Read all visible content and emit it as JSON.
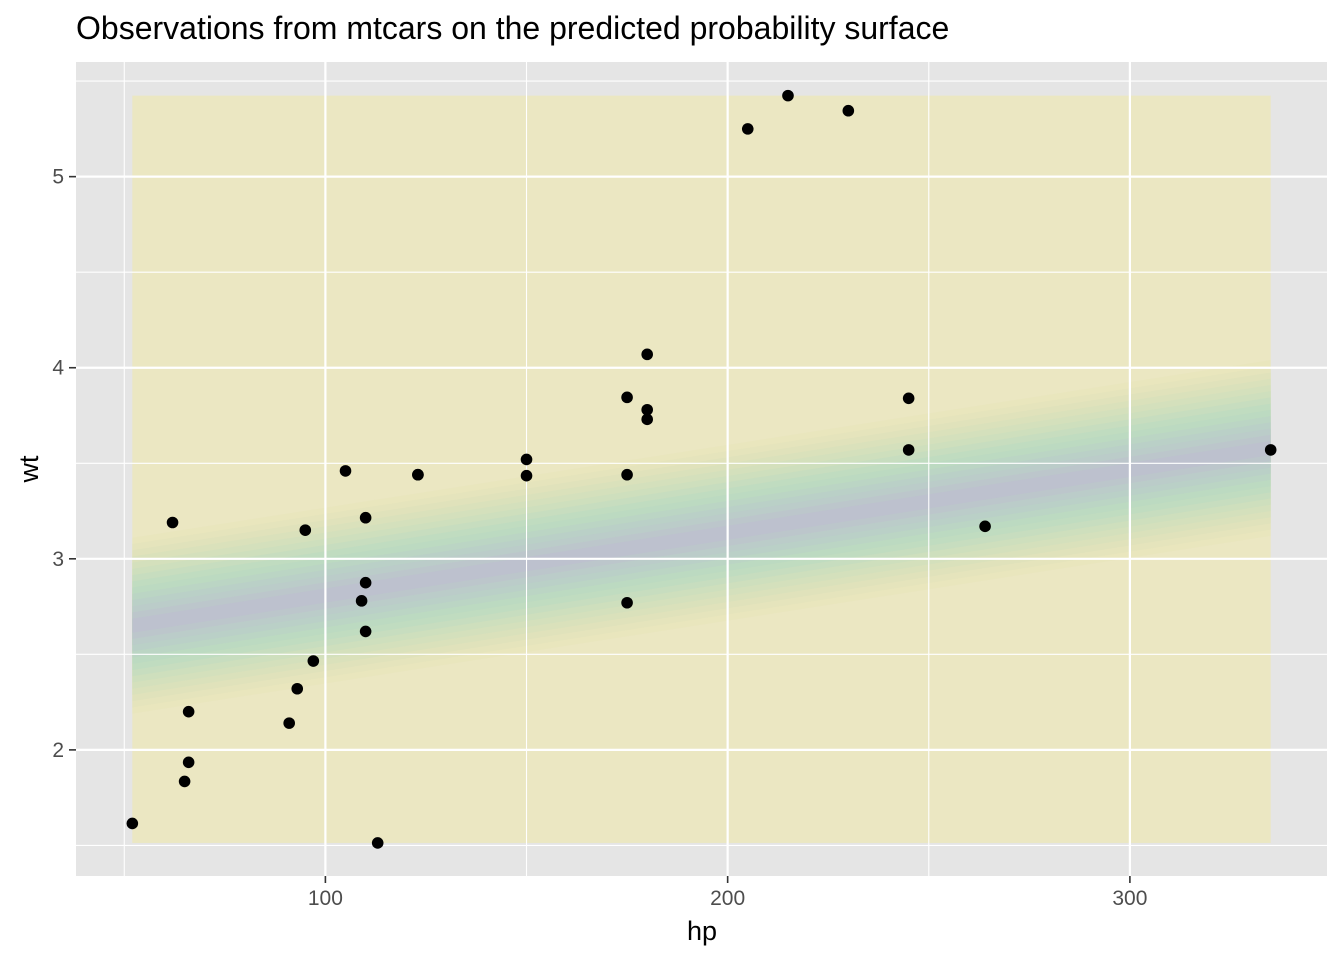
{
  "chart_data": {
    "type": "scatter",
    "title": "Observations from mtcars on the predicted probability surface",
    "xlabel": "hp",
    "ylabel": "wt",
    "xlim": [
      38,
      349
    ],
    "ylim": [
      1.34,
      5.6
    ],
    "x_ticks": [
      100,
      200,
      300
    ],
    "y_ticks": [
      2,
      3,
      4,
      5
    ],
    "grid": true,
    "legend": "none",
    "surface": {
      "x_range": [
        52,
        335
      ],
      "y_range": [
        1.513,
        5.424
      ],
      "band_center_at_xmin": 2.65,
      "band_center_at_xmax": 3.58,
      "band_half_width": 0.46,
      "colors": {
        "background_fill": "#ebe7be",
        "outer": "#e6e4b8",
        "mid": "#b7dbc2",
        "inner": "#bfb9d2"
      }
    },
    "points": [
      {
        "x": 110,
        "y": 2.62
      },
      {
        "x": 110,
        "y": 2.875
      },
      {
        "x": 93,
        "y": 2.32
      },
      {
        "x": 110,
        "y": 3.215
      },
      {
        "x": 175,
        "y": 3.44
      },
      {
        "x": 105,
        "y": 3.46
      },
      {
        "x": 245,
        "y": 3.57
      },
      {
        "x": 62,
        "y": 3.19
      },
      {
        "x": 95,
        "y": 3.15
      },
      {
        "x": 123,
        "y": 3.44
      },
      {
        "x": 123,
        "y": 3.44
      },
      {
        "x": 180,
        "y": 4.07
      },
      {
        "x": 180,
        "y": 3.73
      },
      {
        "x": 180,
        "y": 3.78
      },
      {
        "x": 205,
        "y": 5.25
      },
      {
        "x": 215,
        "y": 5.424
      },
      {
        "x": 230,
        "y": 5.345
      },
      {
        "x": 66,
        "y": 2.2
      },
      {
        "x": 52,
        "y": 1.615
      },
      {
        "x": 65,
        "y": 1.835
      },
      {
        "x": 97,
        "y": 2.465
      },
      {
        "x": 150,
        "y": 3.52
      },
      {
        "x": 150,
        "y": 3.435
      },
      {
        "x": 245,
        "y": 3.84
      },
      {
        "x": 175,
        "y": 3.845
      },
      {
        "x": 66,
        "y": 1.935
      },
      {
        "x": 91,
        "y": 2.14
      },
      {
        "x": 113,
        "y": 1.513
      },
      {
        "x": 264,
        "y": 3.17
      },
      {
        "x": 175,
        "y": 2.77
      },
      {
        "x": 335,
        "y": 3.57
      },
      {
        "x": 109,
        "y": 2.78
      }
    ]
  },
  "colors": {
    "panel_bg": "#e5e5e5",
    "grid_major": "#ffffff",
    "point": "#000000"
  }
}
